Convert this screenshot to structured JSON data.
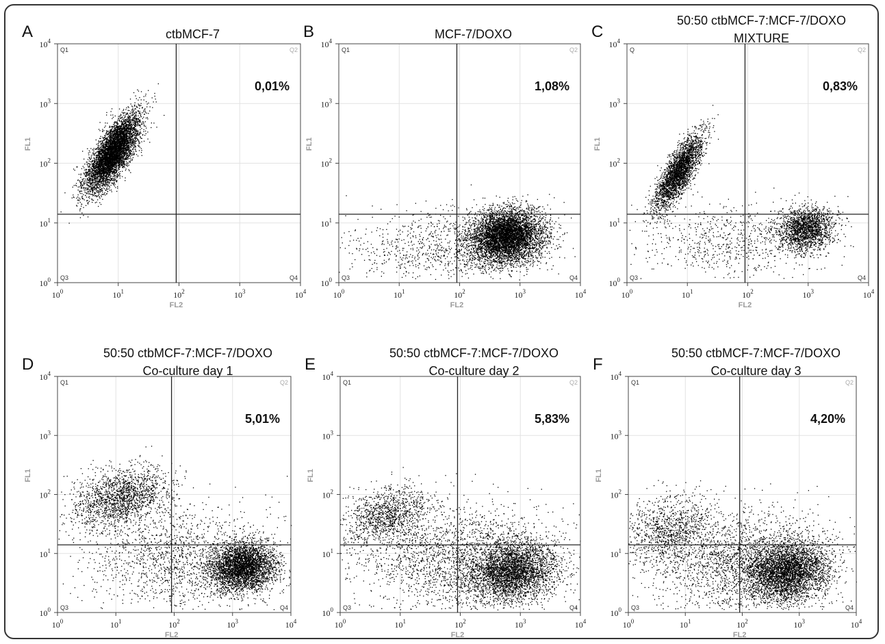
{
  "chart_data": [
    {
      "type": "scatter",
      "panel": "A",
      "title": [
        "ctbMCF-7"
      ],
      "xlabel": "FL2",
      "ylabel": "FL1",
      "xscale": "log",
      "yscale": "log",
      "xlim": [
        1,
        10000
      ],
      "ylim": [
        1,
        10000
      ],
      "xticks": [
        "10^0",
        "10^1",
        "10^2",
        "10^3",
        "10^4"
      ],
      "yticks": [
        "10^0",
        "10^1",
        "10^2",
        "10^3",
        "10^4"
      ],
      "quadrant_gate": {
        "x": 90,
        "y": 14
      },
      "quadrants": [
        "Q1",
        "Q2",
        "Q3",
        "Q4"
      ],
      "annotation": "0,01%",
      "populations": [
        {
          "center_fl2": 8,
          "center_fl1": 150,
          "log_spread": [
            0.22,
            0.32
          ],
          "correlation": 0.75,
          "points": 5500
        }
      ]
    },
    {
      "type": "scatter",
      "panel": "B",
      "title": [
        "MCF-7/DOXO"
      ],
      "xlabel": "FL2",
      "ylabel": "FL1",
      "xscale": "log",
      "yscale": "log",
      "xlim": [
        1,
        10000
      ],
      "ylim": [
        1,
        10000
      ],
      "xticks": [
        "10^0",
        "10^1",
        "10^2",
        "10^3",
        "10^4"
      ],
      "yticks": [
        "10^0",
        "10^1",
        "10^2",
        "10^3",
        "10^4"
      ],
      "quadrant_gate": {
        "x": 90,
        "y": 14
      },
      "quadrants": [
        "Q1",
        "Q2",
        "Q3",
        "Q4"
      ],
      "annotation": "1,08%",
      "populations": [
        {
          "center_fl2": 600,
          "center_fl1": 6,
          "log_spread": [
            0.3,
            0.22
          ],
          "correlation": 0.1,
          "points": 5500
        },
        {
          "center_fl2": 60,
          "center_fl1": 4,
          "log_spread": [
            0.75,
            0.3
          ],
          "correlation": 0.0,
          "points": 900
        }
      ]
    },
    {
      "type": "scatter",
      "panel": "C",
      "title": [
        "50:50 ctbMCF-7:MCF-7/DOXO",
        "MIXTURE"
      ],
      "xlabel": "FL2",
      "ylabel": "FL1",
      "xscale": "log",
      "yscale": "log",
      "xlim": [
        1,
        10000
      ],
      "ylim": [
        1,
        10000
      ],
      "xticks": [
        "10^0",
        "10^1",
        "10^2",
        "10^3",
        "10^4"
      ],
      "yticks": [
        "10^0",
        "10^1",
        "10^2",
        "10^3",
        "10^4"
      ],
      "quadrant_gate": {
        "x": 90,
        "y": 14
      },
      "quadrants": [
        "Q",
        "Q2",
        "Q3",
        "Q4"
      ],
      "annotation": "0,83%",
      "populations": [
        {
          "center_fl2": 7,
          "center_fl1": 70,
          "log_spread": [
            0.2,
            0.32
          ],
          "correlation": 0.8,
          "points": 2800
        },
        {
          "center_fl2": 900,
          "center_fl1": 8,
          "log_spread": [
            0.22,
            0.18
          ],
          "correlation": 0.1,
          "points": 1800
        },
        {
          "center_fl2": 60,
          "center_fl1": 5,
          "log_spread": [
            0.75,
            0.3
          ],
          "correlation": 0.0,
          "points": 700
        }
      ]
    },
    {
      "type": "scatter",
      "panel": "D",
      "title": [
        "50:50 ctbMCF-7:MCF-7/DOXO",
        "Co-culture day 1"
      ],
      "xlabel": "FL2",
      "ylabel": "FL1",
      "xscale": "log",
      "yscale": "log",
      "xlim": [
        1,
        10000
      ],
      "ylim": [
        1,
        10000
      ],
      "xticks": [
        "10^0",
        "10^1",
        "10^2",
        "10^3",
        "10^4"
      ],
      "yticks": [
        "10^0",
        "10^1",
        "10^2",
        "10^3",
        "10^4"
      ],
      "quadrant_gate": {
        "x": 90,
        "y": 14
      },
      "quadrants": [
        "Q1",
        "Q2",
        "Q3",
        "Q4"
      ],
      "annotation": "5,01%",
      "populations": [
        {
          "center_fl2": 12,
          "center_fl1": 90,
          "log_spread": [
            0.4,
            0.25
          ],
          "correlation": 0.3,
          "points": 1700
        },
        {
          "center_fl2": 1500,
          "center_fl1": 6,
          "log_spread": [
            0.28,
            0.2
          ],
          "correlation": 0.1,
          "points": 3500
        },
        {
          "center_fl2": 120,
          "center_fl1": 8,
          "log_spread": [
            0.8,
            0.45
          ],
          "correlation": 0.0,
          "points": 1500
        }
      ]
    },
    {
      "type": "scatter",
      "panel": "E",
      "title": [
        "50:50 ctbMCF-7:MCF-7/DOXO",
        "Co-culture day 2"
      ],
      "xlabel": "FL2",
      "ylabel": "FL1",
      "xscale": "log",
      "yscale": "log",
      "xlim": [
        1,
        10000
      ],
      "ylim": [
        1,
        10000
      ],
      "xticks": [
        "10^0",
        "10^1",
        "10^2",
        "10^3",
        "10^4"
      ],
      "yticks": [
        "10^0",
        "10^1",
        "10^2",
        "10^3",
        "10^4"
      ],
      "quadrant_gate": {
        "x": 90,
        "y": 14
      },
      "quadrants": [
        "Q1",
        "Q2",
        "Q3",
        "Q4"
      ],
      "annotation": "5,83%",
      "populations": [
        {
          "center_fl2": 6,
          "center_fl1": 45,
          "log_spread": [
            0.35,
            0.25
          ],
          "correlation": 0.3,
          "points": 1100
        },
        {
          "center_fl2": 700,
          "center_fl1": 5,
          "log_spread": [
            0.35,
            0.25
          ],
          "correlation": 0.1,
          "points": 3200
        },
        {
          "center_fl2": 100,
          "center_fl1": 8,
          "log_spread": [
            0.85,
            0.45
          ],
          "correlation": 0.0,
          "points": 2200
        }
      ]
    },
    {
      "type": "scatter",
      "panel": "F",
      "title": [
        "50:50 ctbMCF-7:MCF-7/DOXO",
        "Co-culture day 3"
      ],
      "xlabel": "FL2",
      "ylabel": "FL1",
      "xscale": "log",
      "yscale": "log",
      "xlim": [
        1,
        10000
      ],
      "ylim": [
        1,
        10000
      ],
      "xticks": [
        "10^0",
        "10^1",
        "10^2",
        "10^3",
        "10^4"
      ],
      "yticks": [
        "10^0",
        "10^1",
        "10^2",
        "10^3",
        "10^4"
      ],
      "quadrant_gate": {
        "x": 90,
        "y": 14
      },
      "quadrants": [
        "Q1",
        "Q2",
        "Q3",
        "Q4"
      ],
      "annotation": "4,20%",
      "populations": [
        {
          "center_fl2": 5,
          "center_fl1": 25,
          "log_spread": [
            0.4,
            0.3
          ],
          "correlation": 0.2,
          "points": 1000
        },
        {
          "center_fl2": 600,
          "center_fl1": 5,
          "log_spread": [
            0.35,
            0.25
          ],
          "correlation": 0.1,
          "points": 3500
        },
        {
          "center_fl2": 100,
          "center_fl1": 7,
          "log_spread": [
            0.85,
            0.45
          ],
          "correlation": 0.0,
          "points": 2200
        }
      ]
    }
  ]
}
